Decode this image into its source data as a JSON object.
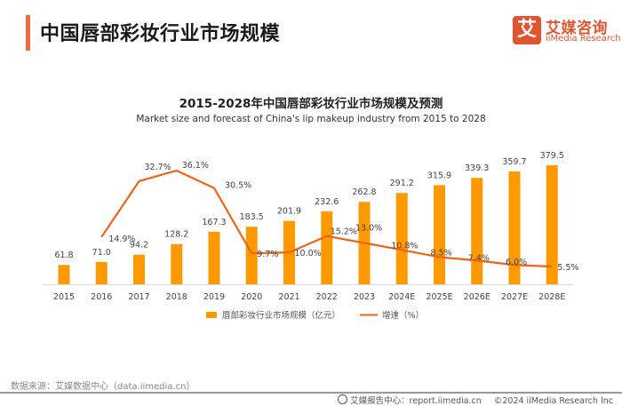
{
  "header": {
    "title": "中国唇部彩妆行业市场规模",
    "logo_glyph": "艾",
    "logo_cn": "艾媒咨询",
    "logo_en": "iiMedia Research",
    "accent_color": "#f26a3d"
  },
  "chart_data": {
    "type": "bar",
    "title": "2015-2028年中国唇部彩妆行业市场规模及预测",
    "subtitle": "Market size and forecast of China's lip makeup industry from 2015 to 2028",
    "xlabel": "",
    "ylabel": "",
    "grid": false,
    "legend_position": "bottom",
    "categories": [
      "2015",
      "2016",
      "2017",
      "2018",
      "2019",
      "2020",
      "2021",
      "2022",
      "2023",
      "2024E",
      "2025E",
      "2026E",
      "2027E",
      "2028E"
    ],
    "series": [
      {
        "name": "唇部彩妆行业市场规模（亿元）",
        "type": "bar",
        "color": "#ff9900",
        "values": [
          61.8,
          71.0,
          94.2,
          128.2,
          167.3,
          183.5,
          201.9,
          232.6,
          262.8,
          291.2,
          315.9,
          339.3,
          359.7,
          379.5
        ],
        "labels": [
          "61.8",
          "71.0",
          "94.2",
          "128.2",
          "167.3",
          "183.5",
          "201.9",
          "232.6",
          "262.8",
          "291.2",
          "315.9",
          "339.3",
          "359.7",
          "379.5"
        ]
      },
      {
        "name": "增速（%）",
        "type": "line",
        "color": "#f06414",
        "values": [
          null,
          14.9,
          32.7,
          36.1,
          30.5,
          9.7,
          10.0,
          15.2,
          13.0,
          10.8,
          8.5,
          7.4,
          6.0,
          5.5
        ],
        "labels": [
          "",
          "14.9%",
          "32.7%",
          "36.1%",
          "30.5%",
          "9.7%",
          "10.0%",
          "15.2%",
          "13.0%",
          "10.8%",
          "8.5%",
          "7.4%",
          "6.0%",
          "5.5%"
        ]
      }
    ],
    "bar_ylim": [
      0,
      400
    ],
    "line_ylim": [
      0,
      40
    ]
  },
  "footer": {
    "source": "数据来源：艾媒数据中心（data.iimedia.cn）",
    "report_center": "艾媒报告中心：report.iimedia.cn",
    "copyright": "©2024  iiMedia Research  Inc"
  }
}
